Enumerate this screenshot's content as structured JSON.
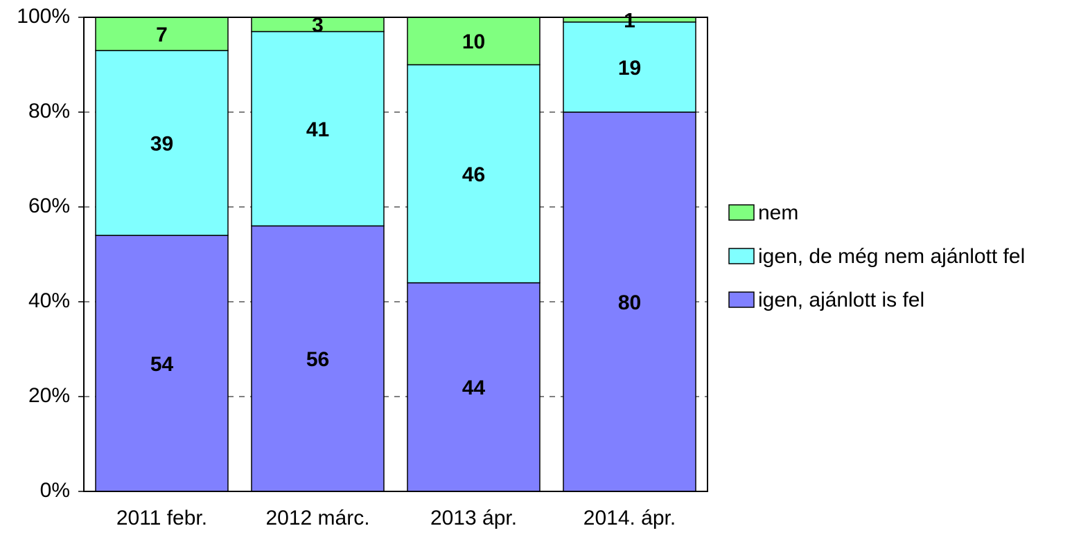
{
  "chart_data": {
    "type": "stacked_bar",
    "categories": [
      "2011 febr.",
      "2012 márc.",
      "2013 ápr.",
      "2014. ápr."
    ],
    "series": [
      {
        "name": "igen, ajánlott is fel",
        "color": "#8080ff",
        "values": [
          54,
          56,
          44,
          80
        ]
      },
      {
        "name": "igen, de még nem ajánlott fel",
        "color": "#80ffff",
        "values": [
          39,
          41,
          46,
          19
        ]
      },
      {
        "name": "nem",
        "color": "#80ff80",
        "values": [
          7,
          3,
          10,
          1
        ]
      }
    ],
    "ylim": [
      0,
      100
    ],
    "yticks": [
      {
        "value": 0,
        "label": "0%"
      },
      {
        "value": 20,
        "label": "20%"
      },
      {
        "value": 40,
        "label": "40%"
      },
      {
        "value": 60,
        "label": "60%"
      },
      {
        "value": 80,
        "label": "80%"
      },
      {
        "value": 100,
        "label": "100%"
      }
    ],
    "grid": true,
    "legend": "right"
  }
}
